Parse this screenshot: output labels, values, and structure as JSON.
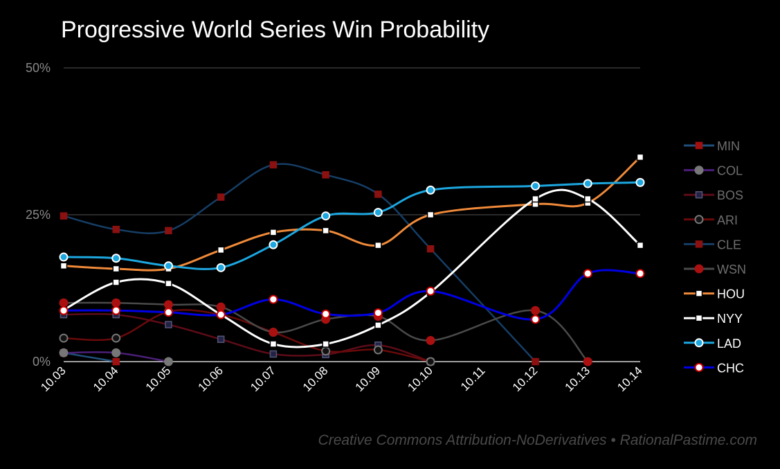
{
  "chart_data": {
    "type": "line",
    "title": "Progressive World Series Win Probability",
    "credit": "Creative Commons Attribution-NoDerivatives • RationalPastime.com",
    "x": [
      "10.03",
      "10.04",
      "10.05",
      "10.06",
      "10.07",
      "10.08",
      "10.09",
      "10.10",
      "10.11",
      "10.12",
      "10.13",
      "10.14"
    ],
    "ylim": [
      0,
      50
    ],
    "yticks": [
      {
        "value": 0,
        "label": "0%"
      },
      {
        "value": 25,
        "label": "25%"
      },
      {
        "value": 50,
        "label": "50%"
      }
    ],
    "grid": true,
    "legend_position": "right",
    "series": [
      {
        "name": "MIN",
        "color": "#1f4f7a",
        "marker": "square",
        "marker_fill": "#a01010",
        "marker_stroke": "#a01010",
        "dim": true,
        "values": [
          1.5,
          0,
          null,
          null,
          null,
          null,
          null,
          null,
          null,
          null,
          null,
          null
        ]
      },
      {
        "name": "COL",
        "color": "#4b1e78",
        "marker": "circle",
        "marker_fill": "#777777",
        "marker_stroke": "#777777",
        "dim": true,
        "values": [
          1.5,
          1.5,
          0,
          null,
          null,
          null,
          null,
          null,
          null,
          null,
          null,
          null
        ]
      },
      {
        "name": "BOS",
        "color": "#5e0c18",
        "marker": "square",
        "marker_fill": "#222244",
        "marker_stroke": "#555577",
        "dim": true,
        "values": [
          8,
          8,
          6.3,
          3.8,
          1.3,
          1.2,
          2.8,
          0,
          null,
          null,
          null,
          null
        ]
      },
      {
        "name": "ARI",
        "color": "#6a0a0a",
        "marker": "circle",
        "marker_fill": "#111111",
        "marker_stroke": "#777777",
        "dim": true,
        "values": [
          4,
          4,
          8.5,
          8,
          5,
          1.8,
          2,
          0,
          null,
          null,
          null,
          null
        ]
      },
      {
        "name": "CLE",
        "color": "#163e66",
        "marker": "square",
        "marker_fill": "#8b1010",
        "marker_stroke": "#8b1010",
        "dim": true,
        "values": [
          24.8,
          22.5,
          22.3,
          28,
          33.5,
          31.8,
          28.5,
          19.2,
          null,
          0,
          null,
          null
        ]
      },
      {
        "name": "WSN",
        "color": "#4a4a4a",
        "marker": "circle",
        "marker_fill": "#aa1010",
        "marker_stroke": "#aa1010",
        "dim": true,
        "values": [
          10,
          10,
          9.7,
          9.3,
          5,
          7.2,
          7.7,
          3.6,
          null,
          8.7,
          0,
          null
        ]
      },
      {
        "name": "HOU",
        "color": "#f08a3a",
        "marker": "square",
        "marker_fill": "#ffffff",
        "marker_stroke": "#000000",
        "dim": false,
        "values": [
          16.3,
          15.8,
          15.8,
          19,
          22,
          22.3,
          19.8,
          25,
          null,
          26.8,
          27,
          34.8
        ]
      },
      {
        "name": "NYY",
        "color": "#ffffff",
        "marker": "square",
        "marker_fill": "#ffffff",
        "marker_stroke": "#000000",
        "dim": false,
        "values": [
          8.8,
          13.5,
          13.3,
          8,
          3,
          3,
          6.2,
          11.8,
          null,
          27.7,
          27.7,
          19.8
        ]
      },
      {
        "name": "LAD",
        "color": "#1ca7e0",
        "marker": "circle",
        "marker_fill": "#1ca7e0",
        "marker_stroke": "#ffffff",
        "dim": false,
        "values": [
          17.8,
          17.6,
          16.3,
          16,
          19.9,
          24.8,
          25.4,
          29.2,
          null,
          29.9,
          30.3,
          30.5
        ]
      },
      {
        "name": "CHC",
        "color": "#0000e6",
        "marker": "circle",
        "marker_fill": "#ffffff",
        "marker_stroke": "#cc0000",
        "dim": false,
        "values": [
          8.7,
          8.7,
          8.4,
          8,
          10.6,
          8.1,
          8.3,
          12,
          null,
          7.2,
          15,
          15
        ]
      }
    ]
  }
}
